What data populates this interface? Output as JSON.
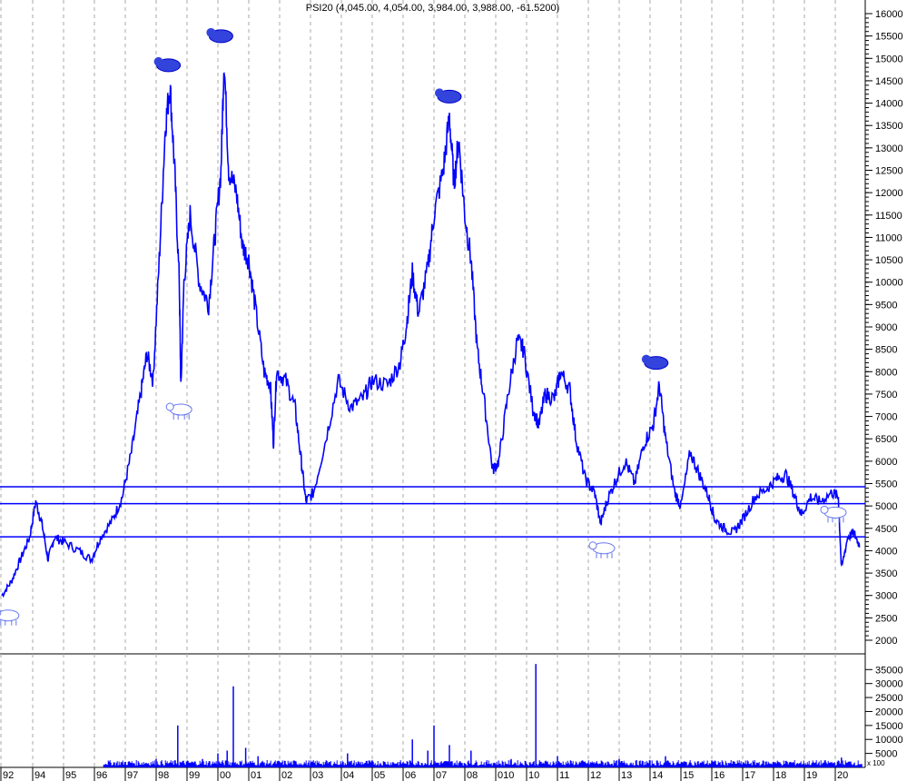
{
  "chart_data": [
    {
      "type": "line",
      "title": "PSI20 (4,045.00, 4,054.00, 3,984.00, 3,988.00, -61.5200)",
      "x_tick_labels": [
        "92",
        "94",
        "95",
        "96",
        "97",
        "98",
        "99",
        "00",
        "01",
        "02",
        "03",
        "04",
        "05",
        "06",
        "07",
        "08",
        "010",
        "10",
        "11",
        "12",
        "13",
        "14",
        "15",
        "16",
        "17",
        "18",
        "19",
        "20"
      ],
      "y_ticks": [
        2000,
        2500,
        3000,
        3500,
        4000,
        4500,
        5000,
        5500,
        6000,
        6500,
        7000,
        7500,
        8000,
        8500,
        9000,
        9500,
        10000,
        10500,
        11000,
        11500,
        12000,
        12500,
        13000,
        13500,
        14000,
        14500,
        15000,
        15500,
        16000
      ],
      "ylim": [
        1700,
        16300
      ],
      "xlim": [
        1993.0,
        2020.95
      ],
      "grid": "vertical dashed",
      "series_color": "#0000ff",
      "horizontal_lines": [
        5430,
        5050,
        4310
      ],
      "x": [
        1993.0,
        1993.3,
        1993.6,
        1993.9,
        1994.1,
        1994.3,
        1994.5,
        1994.7,
        1995.0,
        1995.5,
        1995.9,
        1996.2,
        1996.6,
        1996.9,
        1997.2,
        1997.5,
        1997.7,
        1997.9,
        1998.1,
        1998.3,
        1998.45,
        1998.6,
        1998.75,
        1998.8,
        1998.9,
        1999.1,
        1999.4,
        1999.7,
        1999.9,
        2000.1,
        2000.2,
        2000.35,
        2000.6,
        2000.8,
        2001.0,
        2001.2,
        2001.5,
        2001.7,
        2001.8,
        2001.9,
        2002.2,
        2002.5,
        2002.7,
        2002.85,
        2003.1,
        2003.5,
        2003.9,
        2004.3,
        2004.7,
        2005.0,
        2005.5,
        2005.9,
        2006.1,
        2006.3,
        2006.5,
        2006.8,
        2007.0,
        2007.3,
        2007.5,
        2007.65,
        2007.8,
        2008.0,
        2008.2,
        2008.4,
        2008.6,
        2008.9,
        2009.1,
        2009.4,
        2009.7,
        2009.9,
        2010.2,
        2010.4,
        2010.6,
        2010.9,
        2011.1,
        2011.4,
        2011.6,
        2011.9,
        2012.2,
        2012.4,
        2012.6,
        2012.9,
        2013.2,
        2013.5,
        2013.8,
        2014.1,
        2014.3,
        2014.5,
        2014.8,
        2015.0,
        2015.3,
        2015.6,
        2015.9,
        2016.1,
        2016.4,
        2016.7,
        2017.0,
        2017.4,
        2017.8,
        2018.1,
        2018.4,
        2018.7,
        2018.9,
        2019.2,
        2019.5,
        2019.9,
        2020.1,
        2020.2,
        2020.4,
        2020.6,
        2020.8
      ],
      "y": [
        3000,
        3300,
        3800,
        4300,
        5100,
        4600,
        3800,
        4300,
        4200,
        4000,
        3800,
        4300,
        4700,
        5200,
        6200,
        7500,
        8400,
        7800,
        10500,
        13500,
        14400,
        12500,
        10000,
        7600,
        10000,
        11500,
        10000,
        9500,
        11000,
        12500,
        15000,
        12500,
        12000,
        10800,
        10500,
        9500,
        8000,
        7700,
        6400,
        8000,
        7800,
        7200,
        6000,
        5100,
        5300,
        6500,
        7800,
        7200,
        7400,
        7800,
        7700,
        8200,
        9000,
        10200,
        9300,
        10300,
        11500,
        12500,
        13700,
        12200,
        13200,
        11500,
        10500,
        8500,
        7500,
        5800,
        6000,
        7500,
        8700,
        8500,
        7200,
        6800,
        7500,
        7400,
        8000,
        7600,
        6500,
        5600,
        5300,
        4600,
        5100,
        5600,
        6000,
        5500,
        6400,
        6800,
        7700,
        6500,
        5300,
        5000,
        6200,
        5700,
        5200,
        4700,
        4500,
        4400,
        4700,
        5200,
        5400,
        5600,
        5700,
        5200,
        4800,
        5200,
        5100,
        5300,
        5200,
        3600,
        4300,
        4400,
        4100
      ],
      "markers": [
        {
          "kind": "bear-icon",
          "x": 1998.4,
          "y": 14400
        },
        {
          "kind": "bear-icon",
          "x": 2000.1,
          "y": 15050
        },
        {
          "kind": "bear-icon",
          "x": 2007.5,
          "y": 13700
        },
        {
          "kind": "bear-icon",
          "x": 2014.2,
          "y": 7750
        },
        {
          "kind": "bull-icon",
          "x": 1993.2,
          "y": 3000
        },
        {
          "kind": "bull-icon",
          "x": 1998.8,
          "y": 7600
        },
        {
          "kind": "bull-icon",
          "x": 2012.5,
          "y": 4500
        },
        {
          "kind": "bull-icon",
          "x": 2020.0,
          "y": 5300
        }
      ]
    },
    {
      "type": "bar",
      "y_ticks": [
        5000,
        10000,
        15000,
        20000,
        25000,
        30000,
        35000
      ],
      "ylim": [
        0,
        39000
      ],
      "unit_label": "x 100",
      "color": "#0000ff",
      "x": [
        1997.0,
        1998.0,
        1998.7,
        1999.5,
        2000.0,
        2000.3,
        2000.5,
        2000.9,
        2001.3,
        2003.0,
        2004.2,
        2006.3,
        2006.8,
        2007.0,
        2007.5,
        2008.2,
        2009.5,
        2010.3,
        2011.0,
        2013.0,
        2014.5,
        2016.0,
        2018.0,
        2020.2
      ],
      "values": [
        2000,
        3000,
        15000,
        3000,
        5000,
        6000,
        29000,
        7000,
        4000,
        1500,
        5000,
        10000,
        6000,
        15000,
        8000,
        6000,
        3000,
        37000,
        4000,
        3000,
        4000,
        2500,
        2000,
        3500
      ]
    }
  ]
}
